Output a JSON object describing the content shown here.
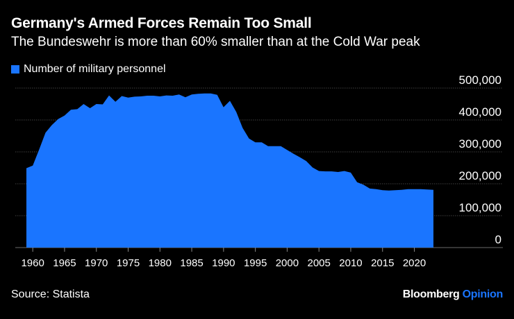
{
  "chart_data": {
    "type": "area",
    "title": "Germany's Armed Forces Remain Too Small",
    "subtitle": "The Bundeswehr is more than 60% smaller than at the Cold War peak",
    "series": [
      {
        "name": "Number of military personnel",
        "x": [
          1959,
          1960,
          1961,
          1962,
          1963,
          1964,
          1965,
          1966,
          1967,
          1968,
          1969,
          1970,
          1971,
          1972,
          1973,
          1974,
          1975,
          1976,
          1977,
          1978,
          1979,
          1980,
          1981,
          1982,
          1983,
          1984,
          1985,
          1986,
          1987,
          1988,
          1989,
          1990,
          1991,
          1992,
          1993,
          1994,
          1995,
          1996,
          1997,
          1998,
          1999,
          2000,
          2001,
          2002,
          2003,
          2004,
          2005,
          2006,
          2007,
          2008,
          2009,
          2010,
          2011,
          2012,
          2013,
          2014,
          2015,
          2016,
          2017,
          2018,
          2019,
          2020,
          2021,
          2022,
          2023
        ],
        "values": [
          249000,
          257000,
          307000,
          360000,
          384000,
          403000,
          414000,
          432000,
          434000,
          450000,
          437000,
          450000,
          449000,
          477000,
          457000,
          475000,
          470000,
          473000,
          474000,
          476000,
          476000,
          474000,
          477000,
          476000,
          480000,
          471000,
          480000,
          482000,
          483000,
          483000,
          479000,
          440000,
          460000,
          425000,
          375000,
          342000,
          330000,
          330000,
          318000,
          318000,
          318000,
          306000,
          294000,
          283000,
          271000,
          251000,
          240000,
          239000,
          239000,
          237000,
          240000,
          235000,
          205000,
          197000,
          185000,
          183000,
          180000,
          179000,
          180000,
          181000,
          183000,
          183000,
          183000,
          182000,
          181000
        ]
      }
    ],
    "ylim": [
      0,
      500000
    ],
    "xlim": [
      1959,
      2023
    ],
    "yticks": [
      "500,000",
      "400,000",
      "300,000",
      "200,000",
      "100,000",
      "0"
    ],
    "ytick_values": [
      500000,
      400000,
      300000,
      200000,
      100000,
      0
    ],
    "xticks": [
      "1960",
      "1965",
      "1970",
      "1975",
      "1980",
      "1985",
      "1990",
      "1995",
      "2000",
      "2005",
      "2010",
      "2015",
      "2020"
    ],
    "xtick_values": [
      1960,
      1965,
      1970,
      1975,
      1980,
      1985,
      1990,
      1995,
      2000,
      2005,
      2010,
      2015,
      2020
    ],
    "grid": true,
    "legend_position": "top-left",
    "colors": {
      "area": "#1a75ff",
      "background": "#000000",
      "grid": "#555555",
      "text": "#ffffff"
    }
  },
  "footer": {
    "source": "Source: Statista",
    "brand_main": "Bloomberg",
    "brand_accent": "Opinion"
  }
}
